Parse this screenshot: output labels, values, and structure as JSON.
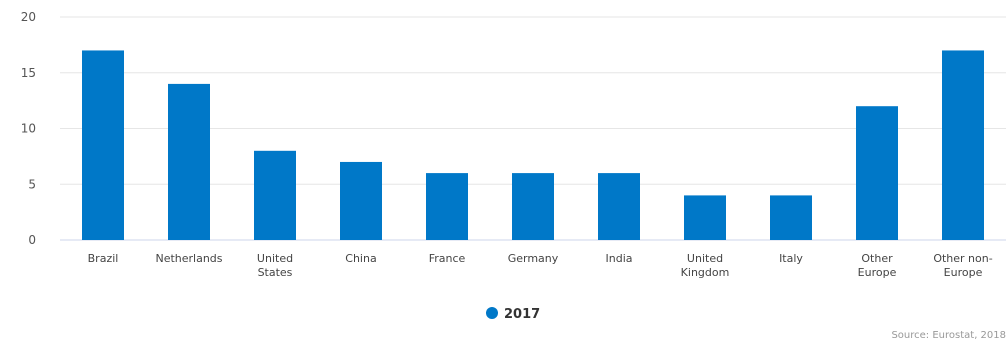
{
  "chart_data": {
    "type": "bar",
    "categories": [
      [
        "Brazil"
      ],
      [
        "Netherlands"
      ],
      [
        "United",
        "States"
      ],
      [
        "China"
      ],
      [
        "France"
      ],
      [
        "Germany"
      ],
      [
        "India"
      ],
      [
        "United",
        "Kingdom"
      ],
      [
        "Italy"
      ],
      [
        "Other",
        "Europe"
      ],
      [
        "Other non-",
        "Europe"
      ]
    ],
    "series": [
      {
        "name": "2017",
        "values": [
          17,
          14,
          8,
          7,
          6,
          6,
          6,
          4,
          4,
          12,
          17
        ]
      }
    ],
    "ylim": [
      0,
      20
    ],
    "yticks": [
      0,
      5,
      10,
      15,
      20
    ],
    "grid": true,
    "legend_position": "bottom-center",
    "colors": {
      "bar": "#0078c8",
      "grid": "#e6e6e6",
      "axis": "#ccd6eb"
    },
    "source": "Source: Eurostat, 2018"
  }
}
